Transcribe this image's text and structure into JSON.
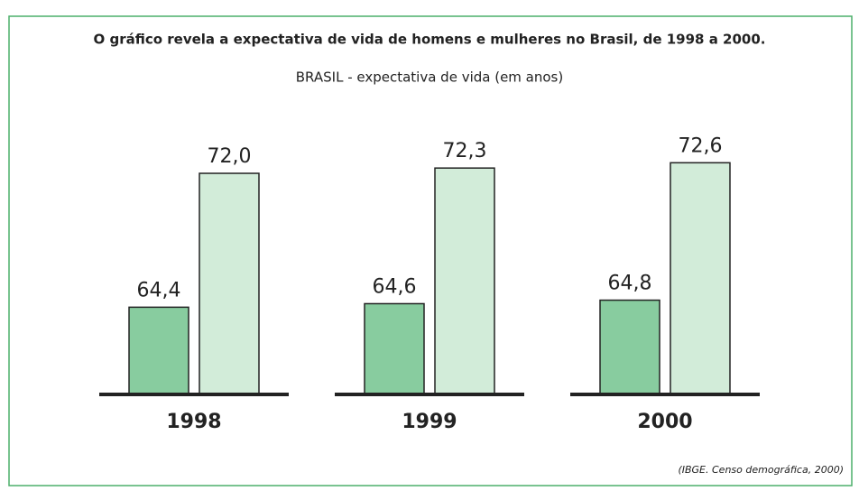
{
  "chart_data": {
    "type": "bar",
    "title": "O gráfico revela a expectativa de vida de homens e mulheres no Brasil, de 1998 a 2000.",
    "subtitle": "BRASIL - expectativa de vida (em anos)",
    "source": "(IBGE. Censo demográfica, 2000)",
    "categories": [
      "1998",
      "1999",
      "2000"
    ],
    "series": [
      {
        "color": "#88cc9f",
        "values": [
          64.4,
          64.6,
          64.8
        ],
        "value_labels": [
          "64,4",
          "64,6",
          "64,8"
        ]
      },
      {
        "color": "#d2ecd9",
        "values": [
          72.0,
          72.3,
          72.6
        ],
        "value_labels": [
          "72,0",
          "72,3",
          "72,6"
        ]
      }
    ],
    "ylim": [
      59.5,
      74
    ]
  }
}
